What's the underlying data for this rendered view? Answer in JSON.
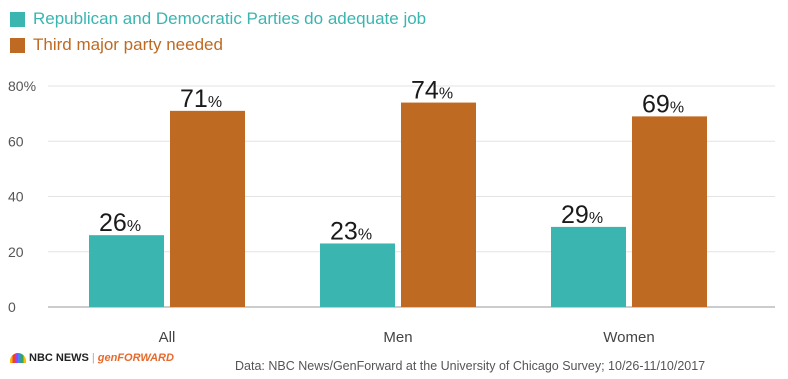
{
  "legend": {
    "items": [
      {
        "label": "Republican and Democratic Parties do adequate job",
        "color": "#3ab5b0"
      },
      {
        "label": "Third major party needed",
        "color": "#bf6a22"
      }
    ]
  },
  "chart_data": {
    "type": "bar",
    "categories": [
      "All",
      "Men",
      "Women"
    ],
    "series": [
      {
        "name": "Republican and Democratic Parties do adequate job",
        "values": [
          26,
          23,
          29
        ],
        "color": "#3ab5b0"
      },
      {
        "name": "Third major party needed",
        "values": [
          71,
          74,
          69
        ],
        "color": "#bf6a22"
      }
    ],
    "ylim": [
      0,
      80
    ],
    "yticks": [
      "0",
      "20",
      "40",
      "60",
      "80%"
    ],
    "value_suffix": "%",
    "grid": true
  },
  "footer": {
    "logo_nbc": "NBC NEWS",
    "logo_separator": "|",
    "logo_gen": "genFORWARD",
    "source": "Data: NBC News/GenForward at the University of Chicago Survey; 10/26-11/10/2017"
  }
}
